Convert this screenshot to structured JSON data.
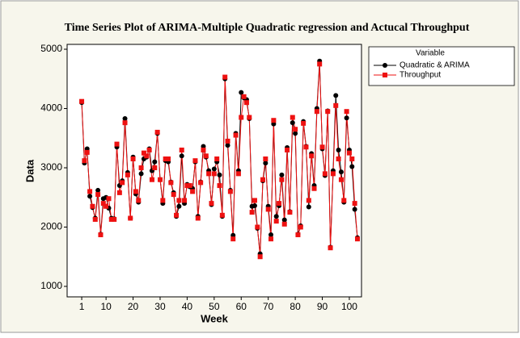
{
  "chart_data": {
    "type": "line",
    "title": "Time Series Plot of ARIMA-Multiple Quadratic regression and Actucal Throughput",
    "x_label": "Week",
    "y_label": "Data",
    "legend_title": "Variable",
    "x": [
      1,
      2,
      3,
      4,
      5,
      6,
      7,
      8,
      9,
      10,
      11,
      12,
      13,
      14,
      15,
      16,
      17,
      18,
      19,
      20,
      21,
      22,
      23,
      24,
      25,
      26,
      27,
      28,
      29,
      30,
      31,
      32,
      33,
      34,
      35,
      36,
      37,
      38,
      39,
      40,
      41,
      42,
      43,
      44,
      45,
      46,
      47,
      48,
      49,
      50,
      51,
      52,
      53,
      54,
      55,
      56,
      57,
      58,
      59,
      60,
      61,
      62,
      63,
      64,
      65,
      66,
      67,
      68,
      69,
      70,
      71,
      72,
      73,
      74,
      75,
      76,
      77,
      78,
      79,
      80,
      81,
      82,
      83,
      84,
      85,
      86,
      87,
      88,
      89,
      90,
      91,
      92,
      93,
      94,
      95,
      96,
      97,
      98,
      99,
      100,
      101,
      102,
      103
    ],
    "series": [
      {
        "name": "Quadratic & ARIMA",
        "color": "#000000",
        "marker": "circle",
        "values": [
          4100,
          3080,
          3320,
          2520,
          2330,
          2150,
          2620,
          1880,
          2480,
          2500,
          2320,
          2150,
          2140,
          3350,
          2700,
          2780,
          3830,
          2920,
          2150,
          3180,
          2560,
          2420,
          2900,
          3150,
          3180,
          3320,
          2950,
          3100,
          3580,
          2800,
          2400,
          3120,
          3100,
          2760,
          2580,
          2180,
          2350,
          3200,
          2400,
          2720,
          2680,
          2650,
          3100,
          2180,
          2760,
          3360,
          3180,
          2950,
          2380,
          2980,
          3100,
          2880,
          2180,
          4500,
          3380,
          2620,
          1860,
          3580,
          2950,
          4270,
          4180,
          4150,
          3830,
          2350,
          2360,
          1980,
          1550,
          2780,
          3080,
          2350,
          1870,
          3740,
          2180,
          2360,
          2880,
          2120,
          3340,
          2260,
          3760,
          3580,
          1880,
          2020,
          3780,
          3360,
          2340,
          3240,
          2700,
          4000,
          4800,
          3320,
          2870,
          3960,
          1660,
          2950,
          4220,
          3300,
          2930,
          2420,
          3840,
          3300,
          3020,
          2300,
          1820
        ]
      },
      {
        "name": "Throughput",
        "color": "#ee1111",
        "marker": "square",
        "values": [
          4120,
          3120,
          3260,
          2600,
          2350,
          2130,
          2550,
          1870,
          2400,
          2350,
          2480,
          2130,
          2130,
          3400,
          2580,
          2750,
          3760,
          2880,
          2150,
          3150,
          2600,
          2450,
          3000,
          3250,
          3200,
          3300,
          2800,
          3000,
          3600,
          2800,
          2450,
          3150,
          3150,
          2750,
          2550,
          2200,
          2450,
          3300,
          2450,
          2700,
          2700,
          2600,
          3120,
          2150,
          2750,
          3300,
          3200,
          2900,
          2400,
          2900,
          3150,
          2700,
          2200,
          4530,
          3450,
          2600,
          1800,
          3550,
          2900,
          3850,
          4200,
          4100,
          3850,
          2250,
          2450,
          2000,
          1500,
          2800,
          3150,
          2300,
          1800,
          3800,
          2100,
          2400,
          2800,
          2050,
          3300,
          2250,
          3850,
          3650,
          1870,
          2000,
          3750,
          3350,
          2450,
          3200,
          2650,
          3950,
          4750,
          3350,
          2900,
          3950,
          1650,
          2900,
          4050,
          3150,
          2800,
          2450,
          3950,
          3250,
          3150,
          2400,
          1800
        ]
      }
    ],
    "xlim": [
      -4.4,
      104.5
    ],
    "ylim": [
      823,
      5082
    ],
    "xticks": [
      1,
      10,
      20,
      30,
      40,
      50,
      60,
      70,
      80,
      90,
      100
    ],
    "yticks": [
      1000,
      2000,
      3000,
      4000,
      5000
    ]
  }
}
